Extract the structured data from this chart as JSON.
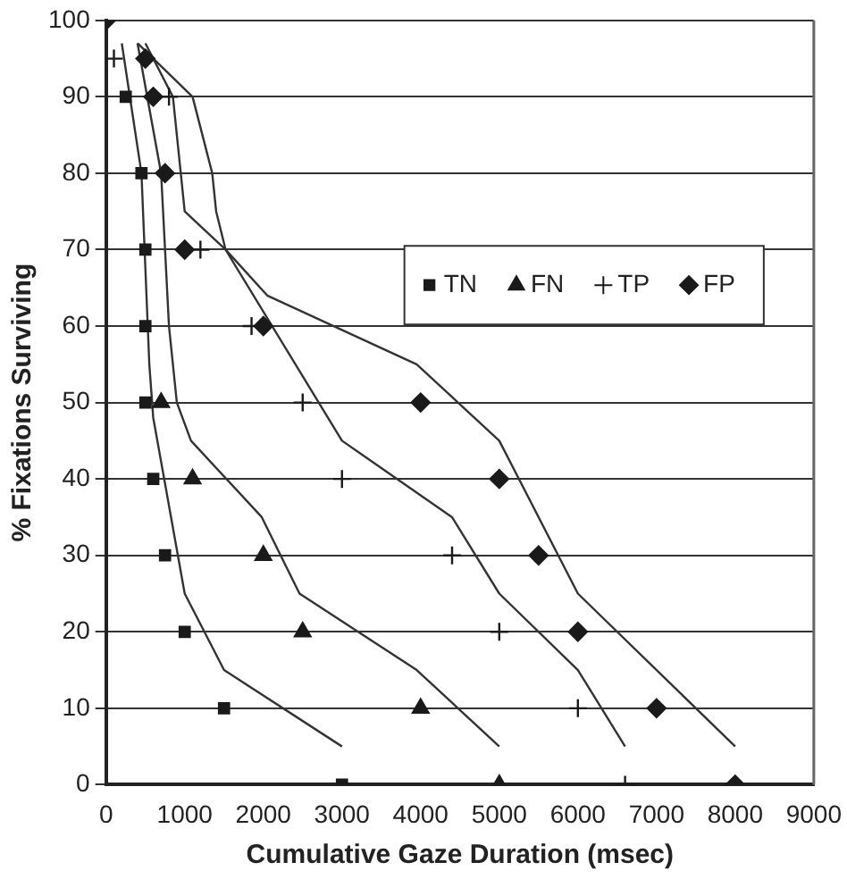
{
  "chart_data": {
    "type": "scatter",
    "xlabel": "Cumulative Gaze Duration (msec)",
    "ylabel": "% Fixations Surviving",
    "xlim": [
      0,
      9000
    ],
    "xticks": [
      0,
      1000,
      2000,
      3000,
      4000,
      5000,
      6000,
      7000,
      8000,
      9000
    ],
    "ylim": [
      0,
      100
    ],
    "yticks": [
      0,
      10,
      20,
      30,
      40,
      50,
      60,
      70,
      80,
      90,
      100
    ],
    "grid": "y",
    "legend": "right",
    "series": [
      {
        "name": "TN",
        "marker": "square",
        "color": "#1a1a1a",
        "x": [
          250,
          450,
          500,
          500,
          500,
          600,
          750,
          1000,
          1500,
          3000
        ],
        "values": [
          90,
          80,
          70,
          60,
          50,
          40,
          30,
          20,
          10,
          0
        ]
      },
      {
        "name": "FN",
        "marker": "triangle",
        "color": "#1a1a1a",
        "x": [
          700,
          1100,
          2000,
          2500,
          4000,
          5000
        ],
        "values": [
          50,
          40,
          30,
          20,
          10,
          0
        ]
      },
      {
        "name": "TP",
        "marker": "cross",
        "color": "#1a1a1a",
        "x": [
          100,
          800,
          1200,
          1850,
          2500,
          3000,
          4400,
          5000,
          6000,
          6600
        ],
        "values": [
          95,
          90,
          70,
          60,
          50,
          40,
          30,
          20,
          10,
          0
        ]
      },
      {
        "name": "FP",
        "marker": "diamond",
        "color": "#1a1a1a",
        "x": [
          0,
          500,
          600,
          750,
          1000,
          2000,
          4000,
          5000,
          5500,
          6000,
          7000,
          8000
        ],
        "values": [
          100,
          95,
          90,
          80,
          70,
          60,
          50,
          40,
          30,
          20,
          10,
          0
        ]
      },
      {
        "type": "line",
        "color": "#333333",
        "x": [
          200,
          450,
          550,
          600,
          1000,
          1500,
          3000
        ],
        "values": [
          97,
          80,
          55,
          48,
          25,
          15,
          5
        ]
      },
      {
        "type": "line",
        "color": "#333333",
        "x": [
          400,
          700,
          800,
          900,
          1080,
          1980,
          2460,
          3950,
          5000
        ],
        "values": [
          97,
          80,
          60,
          50,
          45,
          35,
          25,
          15,
          5
        ]
      },
      {
        "type": "line",
        "color": "#333333",
        "x": [
          500,
          850,
          950,
          1000,
          1520,
          3000,
          4400,
          5000,
          6000,
          6600
        ],
        "values": [
          97,
          90,
          80,
          75,
          70,
          45,
          35,
          25,
          15,
          5
        ]
      },
      {
        "type": "line",
        "color": "#333333",
        "x": [
          400,
          1100,
          1350,
          1400,
          1520,
          2050,
          3950,
          5000,
          6000,
          8000
        ],
        "values": [
          97,
          90,
          80,
          75,
          70,
          64,
          55,
          45,
          25,
          5
        ]
      }
    ]
  }
}
